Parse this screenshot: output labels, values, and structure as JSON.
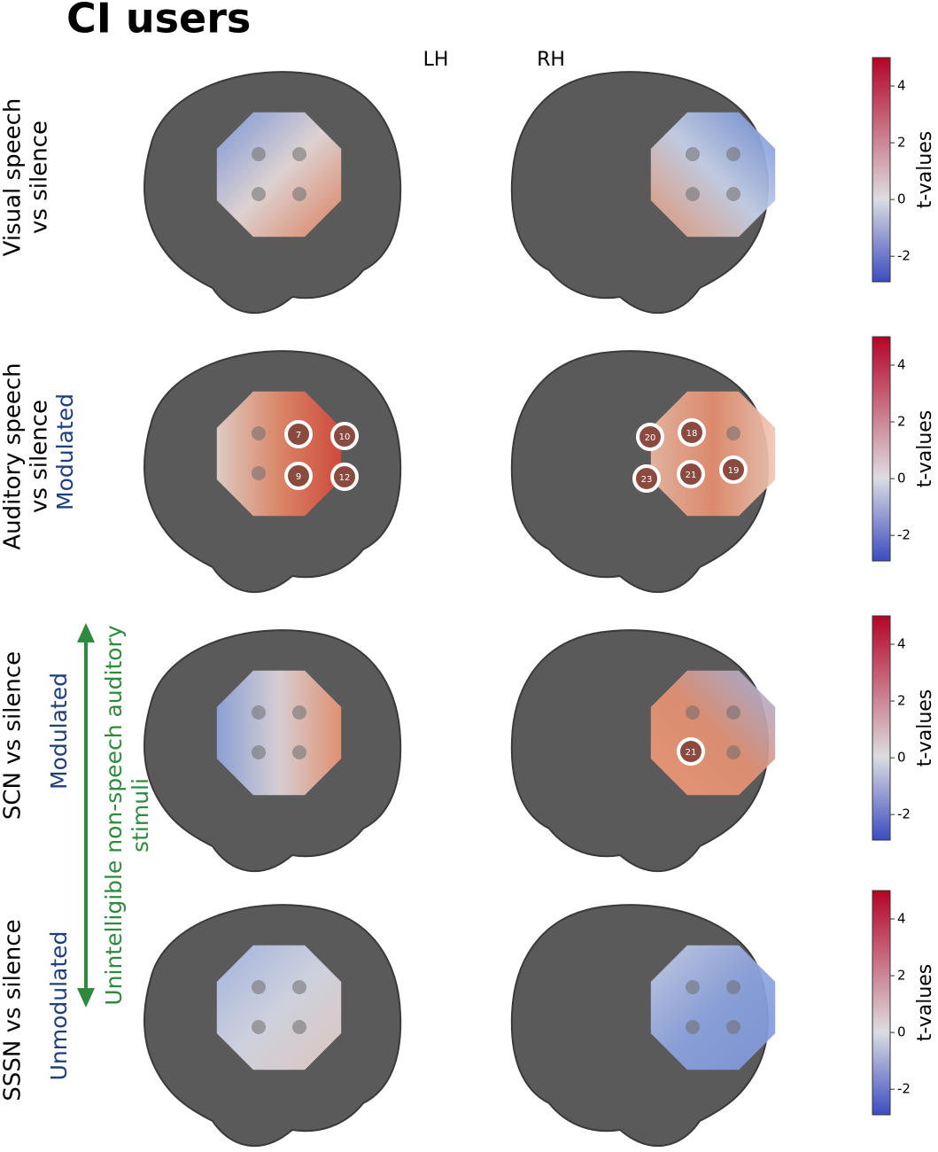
{
  "title": "CI users",
  "hemispheres": [
    "LH",
    "RH"
  ],
  "colorbar": {
    "label": "t-values",
    "lim": [
      -2.9,
      5
    ],
    "ticks": [
      4,
      2,
      0,
      -2
    ]
  },
  "group_label": [
    "Unintelligible non-speech auditory",
    "stimuli"
  ],
  "rows": [
    {
      "label": [
        "Visual speech",
        "vs silence"
      ],
      "channels": [
        [],
        []
      ]
    },
    {
      "label": [
        "Auditory speech",
        "vs silence"
      ],
      "note": "Modulated",
      "channels": [
        [
          "7",
          "10",
          "9",
          "12"
        ],
        [
          "20",
          "18",
          "23",
          "21",
          "19"
        ]
      ]
    },
    {
      "label": [
        "SCN vs silence"
      ],
      "note": "Modulated",
      "channels": [
        [],
        [
          "21"
        ]
      ]
    },
    {
      "label": [
        "SSSN vs silence"
      ],
      "note": "Unmodulated",
      "channels": [
        [],
        []
      ]
    }
  ]
}
